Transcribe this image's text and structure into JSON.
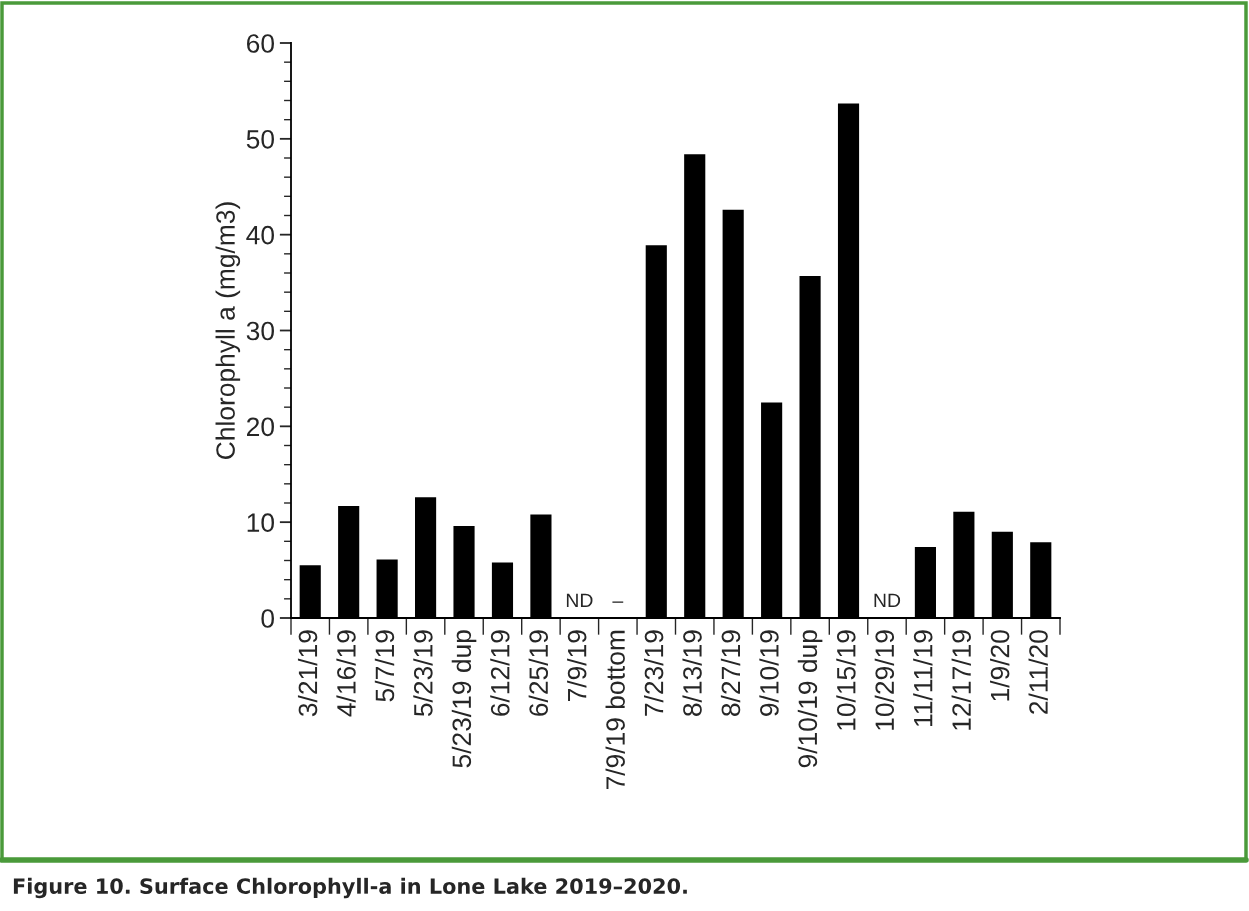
{
  "chart_data": {
    "type": "bar",
    "title": "Figure 10. Surface Chlorophyll-a in Lone Lake 2019–2020.",
    "ylabel": "Chlorophyll a (mg/m3)",
    "categories": [
      "3/21/19",
      "4/16/19",
      "5/7/19",
      "5/23/19",
      "5/23/19 dup",
      "6/12/19",
      "6/25/19",
      "7/9/19",
      "7/9/19 bottom",
      "7/23/19",
      "8/13/19",
      "8/27/19",
      "9/10/19",
      "9/10/19 dup",
      "10/15/19",
      "10/29/19",
      "11/11/19",
      "12/17/19",
      "1/9/20",
      "2/11/20"
    ],
    "values": [
      5.5,
      11.7,
      6.1,
      12.6,
      9.6,
      5.8,
      10.8,
      null,
      null,
      38.9,
      48.4,
      42.6,
      22.5,
      35.7,
      53.7,
      null,
      7.4,
      11.1,
      9.0,
      7.9
    ],
    "value_labels": [
      null,
      null,
      null,
      null,
      null,
      null,
      null,
      "ND",
      "–",
      null,
      null,
      null,
      null,
      null,
      null,
      "ND",
      null,
      null,
      null,
      null
    ],
    "color": "#000000",
    "ylim": [
      0,
      60
    ],
    "yticks": [
      0,
      10,
      20,
      30,
      40,
      50,
      60
    ],
    "grid": false
  }
}
